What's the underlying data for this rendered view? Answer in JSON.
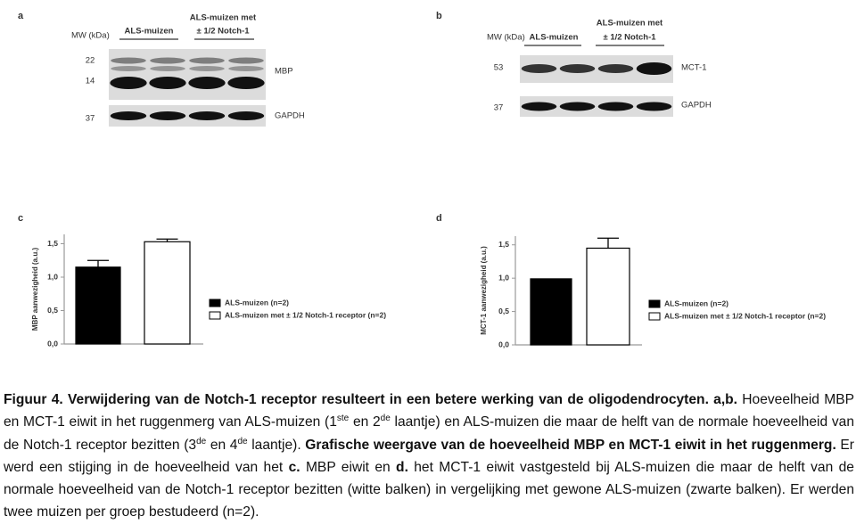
{
  "panels": {
    "a": {
      "letter": "a",
      "mw_label": "MW (kDa)",
      "groups": [
        {
          "lines": [
            "ALS-muizen"
          ]
        },
        {
          "lines": [
            "ALS-muizen met",
            "± 1/2 Notch-1"
          ]
        }
      ],
      "markers": [
        "22",
        "14",
        "37"
      ],
      "bands": [
        "MBP",
        "GAPDH"
      ]
    },
    "b": {
      "letter": "b",
      "mw_label": "MW (kDa)",
      "groups": [
        {
          "lines": [
            "ALS-muizen"
          ]
        },
        {
          "lines": [
            "ALS-muizen met",
            "± 1/2 Notch-1"
          ]
        }
      ],
      "markers": [
        "53",
        "37"
      ],
      "bands": [
        "MCT-1",
        "GAPDH"
      ]
    }
  },
  "chart_data": [
    {
      "type": "bar",
      "panel": "c",
      "y_label": "MBP aanwezigheid (a.u.)",
      "ylim": [
        0,
        1.64
      ],
      "yticks": [
        {
          "value": 0,
          "label": "0,0"
        },
        {
          "value": 0.5,
          "label": "0,5"
        },
        {
          "value": 1,
          "label": "1,0"
        },
        {
          "value": 1.5,
          "label": "1,5"
        }
      ],
      "series": [
        {
          "name": "ALS-muizen (n=2)",
          "color": "#000000",
          "values": [
            1.15
          ],
          "errors": [
            0.1
          ]
        },
        {
          "name": "ALS-muizen met ± 1/2 Notch-1 receptor (n=2)",
          "color": "#ffffff",
          "values": [
            1.53
          ],
          "errors": [
            0.04
          ]
        }
      ]
    },
    {
      "type": "bar",
      "panel": "d",
      "y_label": "MCT-1 aanwezigheid (a.u.)",
      "ylim": [
        0,
        1.63
      ],
      "yticks": [
        {
          "value": 0,
          "label": "0,0"
        },
        {
          "value": 0.5,
          "label": "0,5"
        },
        {
          "value": 1,
          "label": "1,0"
        },
        {
          "value": 1.5,
          "label": "1,5"
        }
      ],
      "series": [
        {
          "name": "ALS-muizen (n=2)",
          "color": "#000000",
          "values": [
            0.99
          ],
          "errors": [
            0
          ]
        },
        {
          "name": "ALS-muizen met ± 1/2 Notch-1 receptor (n=2)",
          "color": "#ffffff",
          "values": [
            1.45
          ],
          "errors": [
            0.15
          ]
        }
      ]
    }
  ],
  "caption": [
    {
      "text": "Figuur 4. Verwijdering van de Notch-1 receptor resulteert in een betere werking van de oligodendrocyten. a,b.",
      "style": "bold"
    },
    {
      "text": " Hoeveelheid MBP en MCT-1 eiwit in het ruggenmerg van ALS-muizen (1"
    },
    {
      "text": "ste",
      "style": "sup"
    },
    {
      "text": " en 2"
    },
    {
      "text": "de",
      "style": "sup"
    },
    {
      "text": " laantje) en ALS-muizen die maar de helft van de normale hoeveelheid van de Notch-1 receptor bezitten (3"
    },
    {
      "text": "de",
      "style": "sup"
    },
    {
      "text": " en 4"
    },
    {
      "text": "de",
      "style": "sup"
    },
    {
      "text": " laantje). "
    },
    {
      "text": "Grafische weergave van de hoeveelheid MBP en MCT-1 eiwit in het ruggenmerg.",
      "style": "bold"
    },
    {
      "text": " Er werd een stijging in de hoeveelheid van het "
    },
    {
      "text": "c.",
      "style": "bold"
    },
    {
      "text": " MBP eiwit en "
    },
    {
      "text": "d.",
      "style": "bold"
    },
    {
      "text": " het MCT-1 eiwit vastgesteld bij ALS-muizen die maar de helft van de normale hoeveelheid van de Notch-1 receptor bezitten (witte balken) in vergelijking met gewone ALS-muizen (zwarte balken). Er werden twee muizen per groep bestudeerd (n=2)."
    }
  ]
}
